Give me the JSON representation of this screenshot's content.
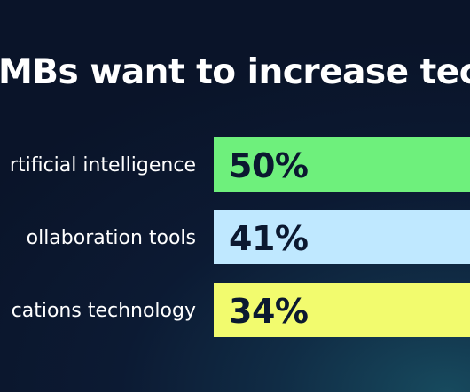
{
  "chart_data": {
    "type": "bar",
    "orientation": "horizontal",
    "title": "MBs want to increase tech s",
    "categories": [
      "rtificial intelligence",
      "ollaboration tools",
      "cations technology"
    ],
    "values": [
      50,
      41,
      34
    ],
    "value_labels": [
      "50%",
      "41%",
      "34%"
    ],
    "colors": [
      "#6ef07c",
      "#bfe8ff",
      "#f2fb6e"
    ],
    "unit": "%"
  }
}
